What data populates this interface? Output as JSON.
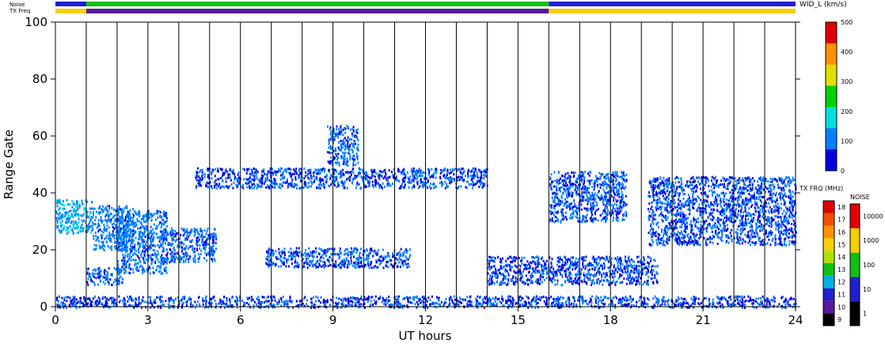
{
  "chart_data": {
    "type": "heatmap",
    "xlabel": "UT hours",
    "ylabel": "Range Gate",
    "xlim": [
      0,
      24
    ],
    "ylim": [
      0,
      100
    ],
    "x_ticks": [
      0,
      3,
      6,
      9,
      12,
      15,
      18,
      21,
      24
    ],
    "x_tick_labels": [
      "0",
      "3",
      "6",
      "9",
      "12",
      "15",
      "18",
      "21",
      "24"
    ],
    "y_ticks": [
      0,
      20,
      40,
      60,
      80,
      100
    ],
    "y_tick_labels": [
      "0",
      "20",
      "40",
      "60",
      "80",
      "100"
    ],
    "hour_dividers": [
      1,
      2,
      3,
      4,
      5,
      6,
      7,
      8,
      9,
      10,
      11,
      12,
      13,
      14,
      15,
      16,
      17,
      18,
      19,
      20,
      21,
      22,
      23
    ],
    "top_bars": {
      "noise_label": "Noise",
      "txfreq_label": "TX Freq",
      "noise_segments": [
        {
          "from": 0,
          "to": 1,
          "color": "#2020d0"
        },
        {
          "from": 1,
          "to": 16,
          "color": "#10c010"
        },
        {
          "from": 16,
          "to": 24,
          "color": "#2020d0"
        }
      ],
      "txfreq_segments": [
        {
          "from": 0,
          "to": 1,
          "color": "#f5d000"
        },
        {
          "from": 1,
          "to": 16,
          "color": "#5a1a9a"
        },
        {
          "from": 16,
          "to": 24,
          "color": "#f5d000"
        }
      ]
    },
    "colorbars": {
      "width": {
        "title": "WID_L (km/s)",
        "ticks": [
          "0",
          "100",
          "200",
          "300",
          "400",
          "500"
        ],
        "gradient": [
          "#0000e0",
          "#0080ff",
          "#00e0e0",
          "#00d000",
          "#e0e000",
          "#ff9000",
          "#e00000"
        ]
      },
      "txfreq": {
        "title": "TX FRQ (MHz)",
        "levels": [
          "9",
          "10",
          "11",
          "12",
          "13",
          "14",
          "15",
          "16",
          "17",
          "18"
        ],
        "colors": [
          "#000000",
          "#5a1a9a",
          "#2020d0",
          "#00b0e0",
          "#10c010",
          "#b0e000",
          "#f5d000",
          "#ff9000",
          "#f05000",
          "#e00000"
        ]
      },
      "noise": {
        "title": "NOISE",
        "levels": [
          "1",
          "10",
          "100",
          "1000",
          "10000"
        ],
        "colors": [
          "#000000",
          "#2020d0",
          "#10c010",
          "#f5d000",
          "#e00000"
        ]
      }
    },
    "series": [
      {
        "ut_from": 0.0,
        "ut_to": 24.0,
        "gate_from": 0,
        "gate_to": 4,
        "width_kms": 40
      },
      {
        "ut_from": 0.0,
        "ut_to": 1.2,
        "gate_from": 26,
        "gate_to": 38,
        "width_kms": 120
      },
      {
        "ut_from": 1.2,
        "ut_to": 2.5,
        "gate_from": 20,
        "gate_to": 36,
        "width_kms": 80
      },
      {
        "ut_from": 1.0,
        "ut_to": 2.2,
        "gate_from": 8,
        "gate_to": 14,
        "width_kms": 60
      },
      {
        "ut_from": 2.0,
        "ut_to": 3.6,
        "gate_from": 12,
        "gate_to": 34,
        "width_kms": 70
      },
      {
        "ut_from": 3.4,
        "ut_to": 5.2,
        "gate_from": 16,
        "gate_to": 28,
        "width_kms": 60
      },
      {
        "ut_from": 6.8,
        "ut_to": 11.5,
        "gate_from": 14,
        "gate_to": 21,
        "width_kms": 50
      },
      {
        "ut_from": 4.5,
        "ut_to": 14.0,
        "gate_from": 42,
        "gate_to": 49,
        "width_kms": 45
      },
      {
        "ut_from": 8.8,
        "ut_to": 9.8,
        "gate_from": 50,
        "gate_to": 64,
        "width_kms": 60
      },
      {
        "ut_from": 14.0,
        "ut_to": 19.5,
        "gate_from": 8,
        "gate_to": 18,
        "width_kms": 40
      },
      {
        "ut_from": 16.0,
        "ut_to": 18.5,
        "gate_from": 30,
        "gate_to": 48,
        "width_kms": 50
      },
      {
        "ut_from": 19.2,
        "ut_to": 24.0,
        "gate_from": 22,
        "gate_to": 46,
        "width_kms": 45
      }
    ]
  }
}
